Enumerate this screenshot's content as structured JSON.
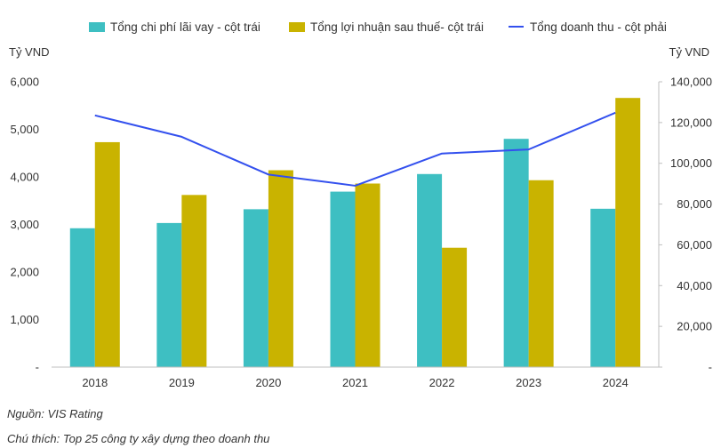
{
  "chart_data": {
    "type": "bar",
    "categories": [
      "2018",
      "2019",
      "2020",
      "2021",
      "2022",
      "2023",
      "2024"
    ],
    "series": [
      {
        "name": "Tổng chi phí lãi vay - cột trái",
        "type": "bar",
        "axis": "left",
        "color": "#3ebfc2",
        "values": [
          2920,
          3030,
          3320,
          3690,
          4060,
          4800,
          3330
        ]
      },
      {
        "name": "Tổng lợi nhuận sau thuế- cột trái",
        "type": "bar",
        "axis": "left",
        "color": "#c9b300",
        "values": [
          4730,
          3620,
          4140,
          3860,
          2510,
          3930,
          5660
        ]
      },
      {
        "name": "Tổng doanh thu - cột phải",
        "type": "line",
        "axis": "right",
        "color": "#3350ee",
        "values": [
          123500,
          113000,
          94500,
          89000,
          104800,
          106800,
          124800
        ]
      }
    ],
    "y_left": {
      "label": "Tỷ VND",
      "range": [
        0,
        6000
      ],
      "ticks": [
        0,
        1000,
        2000,
        3000,
        4000,
        5000,
        6000
      ],
      "tick_labels": [
        "-",
        "1,000",
        "2,000",
        "3,000",
        "4,000",
        "5,000",
        "6,000"
      ]
    },
    "y_right": {
      "label": "Tỷ VND",
      "range": [
        0,
        140000
      ],
      "ticks": [
        0,
        20000,
        40000,
        60000,
        80000,
        100000,
        120000,
        140000
      ],
      "tick_labels": [
        "-",
        "20,000",
        "40,000",
        "60,000",
        "80,000",
        "100,000",
        "120,000",
        "140,000"
      ]
    },
    "legend_position": "top",
    "grid": false
  },
  "notes": {
    "source": "Nguồn: VIS Rating",
    "caption": "Chú thích: Top 25 công ty xây dựng theo doanh thu"
  }
}
